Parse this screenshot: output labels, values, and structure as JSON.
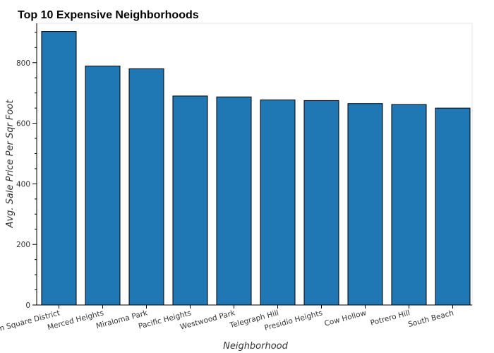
{
  "chart_data": {
    "type": "bar",
    "title": "Top 10 Expensive Neighborhoods",
    "xlabel": "Neighborhood",
    "ylabel": "Avg. Sale Price Per Sqr Foot",
    "categories": [
      "Union Square District",
      "Merced Heights",
      "Miraloma Park",
      "Pacific Heights",
      "Westwood Park",
      "Telegraph Hill",
      "Presidio Heights",
      "Cow Hollow",
      "Potrero Hill",
      "South Beach"
    ],
    "values": [
      903,
      789,
      780,
      690,
      687,
      677,
      675,
      665,
      662,
      650
    ],
    "ylim": [
      0,
      930
    ],
    "yticks": [
      0,
      200,
      400,
      600,
      800
    ],
    "bar_color": "#1f77b4",
    "grid": false
  }
}
